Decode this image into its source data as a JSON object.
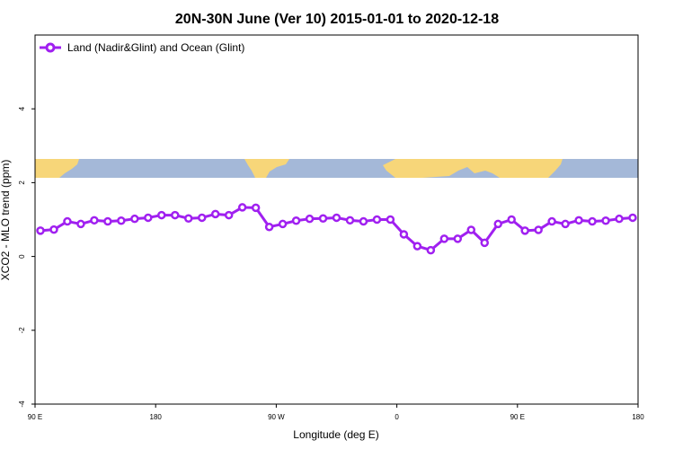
{
  "chart_data": {
    "type": "line",
    "title": "20N-30N June (Ver 10)   2015-01-01 to 2020-12-18",
    "xlabel": "Longitude (deg E)",
    "ylabel": "XCO2 - MLO trend (ppm)",
    "x_tick_labels": [
      "90 E",
      "180",
      "90 W",
      "0",
      "90 E",
      "180"
    ],
    "y_ticks": [
      -4,
      -2,
      0,
      2,
      4
    ],
    "ylim": [
      -4,
      6
    ],
    "grid": false,
    "legend_position": "top-left",
    "series": [
      {
        "name": "Land (Nadir&Glint) and Ocean (Glint)",
        "color": "#a020f0",
        "values": [
          0.7,
          0.73,
          0.95,
          0.88,
          0.98,
          0.95,
          0.97,
          1.02,
          1.05,
          1.12,
          1.12,
          1.03,
          1.05,
          1.15,
          1.12,
          1.33,
          1.32,
          0.8,
          0.88,
          0.97,
          1.02,
          1.03,
          1.05,
          0.98,
          0.95,
          1.0,
          1.0,
          0.6,
          0.28,
          0.17,
          0.48,
          0.48,
          0.72,
          0.37,
          0.88,
          1.0,
          0.7,
          0.72,
          0.95,
          0.88,
          0.98,
          0.95,
          0.97,
          1.02,
          1.05
        ]
      }
    ],
    "map_strip": {
      "description_label": "",
      "ocean_color": "#a4b8d8",
      "land_color": "#f7d679"
    }
  }
}
